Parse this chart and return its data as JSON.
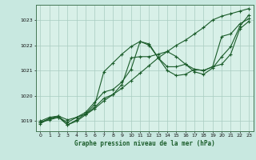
{
  "title": "Graphe pression niveau de la mer (hPa)",
  "bg_color": "#c8e8e0",
  "plot_bg_color": "#d8f0e8",
  "line_color": "#1a5c2a",
  "grid_color": "#a8ccc0",
  "xlim": [
    -0.5,
    23.5
  ],
  "ylim": [
    1018.6,
    1023.6
  ],
  "yticks": [
    1019,
    1020,
    1021,
    1022,
    1023
  ],
  "xticks": [
    0,
    1,
    2,
    3,
    4,
    5,
    6,
    7,
    8,
    9,
    10,
    11,
    12,
    13,
    14,
    15,
    16,
    17,
    18,
    19,
    20,
    21,
    22,
    23
  ],
  "series": [
    [
      1018.9,
      1019.1,
      1019.2,
      1018.85,
      1019.0,
      1019.25,
      1019.5,
      1019.8,
      1020.05,
      1020.3,
      1020.6,
      1020.9,
      1021.2,
      1021.5,
      1021.75,
      1022.0,
      1022.2,
      1022.45,
      1022.7,
      1023.0,
      1023.15,
      1023.25,
      1023.35,
      1023.45
    ],
    [
      1018.95,
      1019.1,
      1019.15,
      1018.85,
      1019.05,
      1019.3,
      1019.65,
      1020.95,
      1021.3,
      1021.65,
      1021.95,
      1022.15,
      1022.05,
      1021.5,
      1021.0,
      1020.8,
      1020.85,
      1021.05,
      1021.0,
      1021.15,
      1022.35,
      1022.45,
      1022.85,
      1023.05
    ],
    [
      1019.0,
      1019.15,
      1019.2,
      1019.05,
      1019.15,
      1019.28,
      1019.55,
      1019.9,
      1020.05,
      1020.45,
      1021.5,
      1021.55,
      1021.55,
      1021.65,
      1021.75,
      1021.55,
      1021.25,
      1021.05,
      1021.0,
      1021.15,
      1021.25,
      1021.65,
      1022.65,
      1022.95
    ],
    [
      1018.95,
      1019.05,
      1019.15,
      1018.95,
      1019.15,
      1019.35,
      1019.75,
      1020.15,
      1020.25,
      1020.55,
      1021.05,
      1022.15,
      1022.0,
      1021.5,
      1021.15,
      1021.15,
      1021.25,
      1020.95,
      1020.85,
      1021.1,
      1021.55,
      1021.95,
      1022.75,
      1023.2
    ]
  ]
}
